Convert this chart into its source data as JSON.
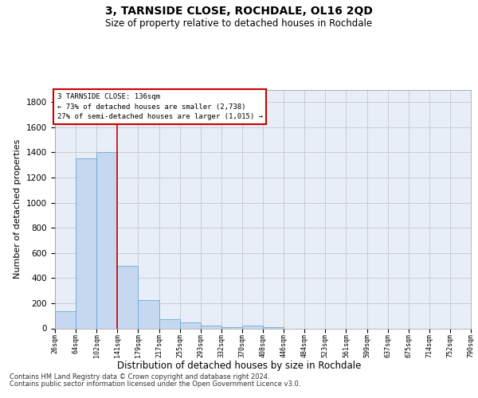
{
  "title": "3, TARNSIDE CLOSE, ROCHDALE, OL16 2QD",
  "subtitle": "Size of property relative to detached houses in Rochdale",
  "xlabel": "Distribution of detached houses by size in Rochdale",
  "ylabel": "Number of detached properties",
  "bin_labels": [
    "26sqm",
    "64sqm",
    "102sqm",
    "141sqm",
    "179sqm",
    "217sqm",
    "255sqm",
    "293sqm",
    "332sqm",
    "370sqm",
    "408sqm",
    "446sqm",
    "484sqm",
    "523sqm",
    "561sqm",
    "599sqm",
    "637sqm",
    "675sqm",
    "714sqm",
    "752sqm",
    "790sqm"
  ],
  "bar_heights": [
    135,
    1350,
    1400,
    495,
    225,
    75,
    45,
    25,
    10,
    20,
    10,
    0,
    0,
    0,
    0,
    0,
    0,
    0,
    0,
    0
  ],
  "bar_color": "#c5d8f0",
  "bar_edge_color": "#6aaad4",
  "property_line_bin": 2.5,
  "annotation_line1": "3 TARNSIDE CLOSE: 136sqm",
  "annotation_line2": "← 73% of detached houses are smaller (2,738)",
  "annotation_line3": "27% of semi-detached houses are larger (1,015) →",
  "annotation_box_color": "#cc0000",
  "ylim": [
    0,
    1900
  ],
  "yticks": [
    0,
    200,
    400,
    600,
    800,
    1000,
    1200,
    1400,
    1600,
    1800
  ],
  "grid_color": "#cccccc",
  "background_color": "#e8eef8",
  "footnote1": "Contains HM Land Registry data © Crown copyright and database right 2024.",
  "footnote2": "Contains public sector information licensed under the Open Government Licence v3.0."
}
